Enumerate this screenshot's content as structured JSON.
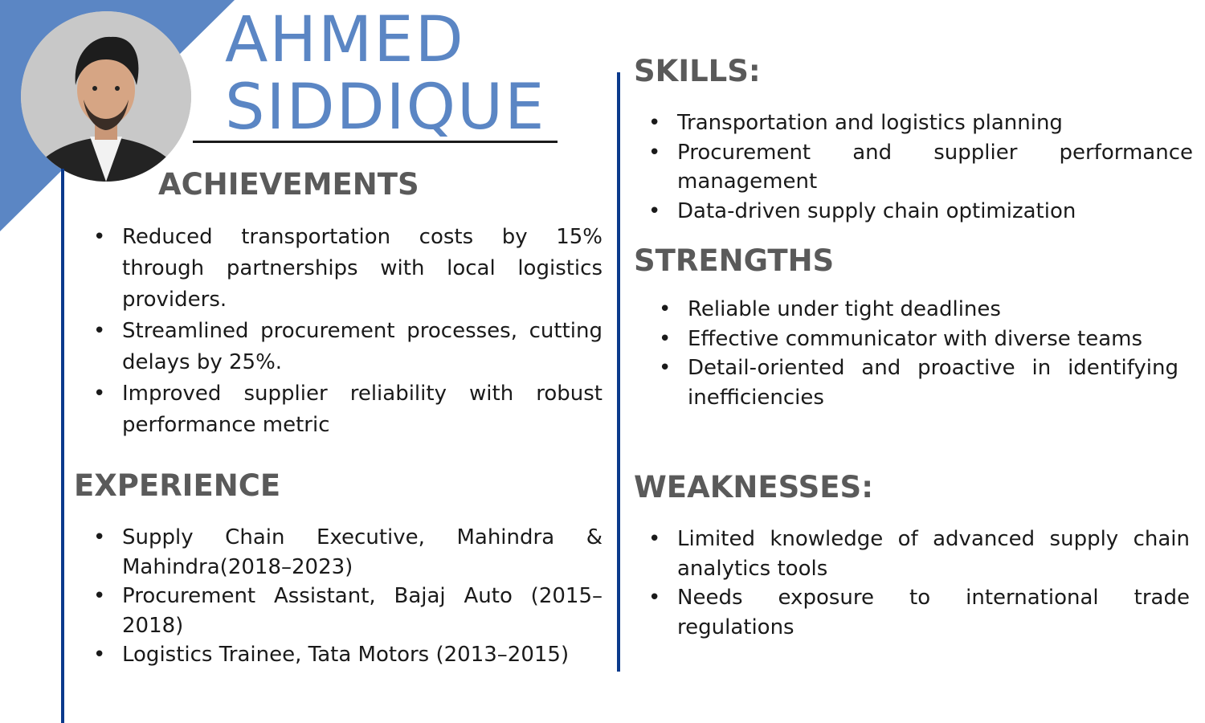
{
  "header": {
    "first_name": "AHMED",
    "last_name": "SIDDIQUE"
  },
  "colors": {
    "accent_blue": "#5b86c4",
    "divider_navy": "#0b3a8c",
    "heading_gray": "#5a5a5a",
    "text": "#1a1a1a"
  },
  "achievements": {
    "title": "ACHIEVEMENTS",
    "items": [
      "Reduced transportation costs by 15% through partnerships with local logistics providers.",
      "Streamlined procurement processes, cutting delays by 25%.",
      "Improved supplier reliability with robust performance metric"
    ]
  },
  "experience": {
    "title": "EXPERIENCE",
    "items": [
      "Supply Chain Executive, Mahindra & Mahindra(2018–2023)",
      "Procurement Assistant, Bajaj Auto (2015–2018)",
      "Logistics Trainee, Tata Motors (2013–2015)"
    ]
  },
  "skills": {
    "title": "SKILLS:",
    "items": [
      "Transportation and logistics planning",
      "Procurement and supplier performance management",
      "Data-driven supply chain optimization"
    ]
  },
  "strengths": {
    "title": "STRENGTHS",
    "items": [
      "Reliable under tight deadlines",
      "Effective communicator with diverse teams",
      "Detail-oriented and proactive in identifying inefficiencies"
    ]
  },
  "weaknesses": {
    "title": "WEAKNESSES:",
    "items": [
      "Limited knowledge of advanced supply chain analytics tools",
      "Needs exposure to international trade regulations"
    ]
  }
}
